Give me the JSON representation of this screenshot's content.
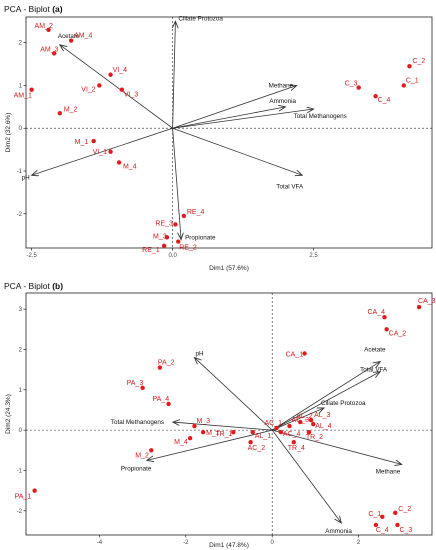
{
  "colors": {
    "points": "#e31a1c",
    "arrows": "#333333",
    "frame": "#000000",
    "reference": "#222222"
  },
  "chart_data": [
    {
      "type": "scatter",
      "subtype": "pca-biplot",
      "title": "PCA - Biplot",
      "panel": "(a)",
      "xlabel": "Dim1 (57.6%)",
      "ylabel": "Dim2 (32.6%)",
      "xlim": [
        -2.6,
        4.6
      ],
      "ylim": [
        -2.8,
        2.6
      ],
      "xticks": [
        -2.5,
        0.0,
        2.5
      ],
      "xtick_labels": [
        "-2.5",
        "0.0",
        "2.5"
      ],
      "yticks": [
        -2,
        -1,
        0,
        1,
        2
      ],
      "ytick_labels": [
        "-2",
        "-1",
        "0",
        "1",
        "2"
      ],
      "reference_lines": "dashed at x=0 and y=0",
      "grid": false,
      "points": [
        {
          "label": "AM_2",
          "x": -2.2,
          "y": 2.3
        },
        {
          "label": "AM_4",
          "x": -1.8,
          "y": 2.05
        },
        {
          "label": "AM_3",
          "x": -2.1,
          "y": 1.75
        },
        {
          "label": "AM_1",
          "x": -2.5,
          "y": 0.9
        },
        {
          "label": "M_2",
          "x": -2.0,
          "y": 0.35
        },
        {
          "label": "VI_4",
          "x": -1.1,
          "y": 1.25
        },
        {
          "label": "VI_2",
          "x": -1.3,
          "y": 1.0
        },
        {
          "label": "VI_3",
          "x": -0.9,
          "y": 0.9
        },
        {
          "label": "M_1",
          "x": -1.4,
          "y": -0.3
        },
        {
          "label": "VI_1",
          "x": -1.1,
          "y": -0.55
        },
        {
          "label": "M_4",
          "x": -0.95,
          "y": -0.8
        },
        {
          "label": "RE_4",
          "x": 0.2,
          "y": -2.05
        },
        {
          "label": "RE_3",
          "x": 0.05,
          "y": -2.25
        },
        {
          "label": "M_3",
          "x": -0.1,
          "y": -2.55
        },
        {
          "label": "RE_1",
          "x": -0.15,
          "y": -2.75
        },
        {
          "label": "RE_2",
          "x": 0.1,
          "y": -2.65
        },
        {
          "label": "C_2",
          "x": 4.2,
          "y": 1.45
        },
        {
          "label": "C_1",
          "x": 4.1,
          "y": 1.0
        },
        {
          "label": "C_3",
          "x": 3.3,
          "y": 0.95
        },
        {
          "label": "C_4",
          "x": 3.6,
          "y": 0.75
        }
      ],
      "loadings": [
        {
          "name": "Ciliate Protozoa",
          "x": 0.05,
          "y": 2.5
        },
        {
          "name": "Acetate",
          "x": -2.0,
          "y": 1.95
        },
        {
          "name": "Methane",
          "x": 2.2,
          "y": 1.0
        },
        {
          "name": "Ammonia",
          "x": 2.0,
          "y": 0.5
        },
        {
          "name": "Total Methanogens",
          "x": 2.5,
          "y": 0.45
        },
        {
          "name": "pH",
          "x": -2.5,
          "y": -1.1
        },
        {
          "name": "Total VFA",
          "x": 2.3,
          "y": -1.1
        },
        {
          "name": "Propionate",
          "x": 0.15,
          "y": -2.6
        }
      ]
    },
    {
      "type": "scatter",
      "subtype": "pca-biplot",
      "title": "PCA - Biplot",
      "panel": "(b)",
      "xlabel": "Dim1 (47.8%)",
      "ylabel": "Dim2 (24.3%)",
      "xlim": [
        -5.7,
        3.7
      ],
      "ylim": [
        -2.6,
        3.4
      ],
      "xticks": [
        -4,
        -2,
        0,
        2
      ],
      "xtick_labels": [
        "-4",
        "-2",
        "0",
        "2"
      ],
      "yticks": [
        -2,
        -1,
        0,
        1,
        2,
        3
      ],
      "ytick_labels": [
        "-2",
        "-1",
        "0",
        "1",
        "2",
        "3"
      ],
      "reference_lines": "dashed at x=0 and y=0",
      "grid": false,
      "points": [
        {
          "label": "CA_3",
          "x": 3.4,
          "y": 3.05
        },
        {
          "label": "CA_4",
          "x": 2.6,
          "y": 2.8
        },
        {
          "label": "CA_2",
          "x": 2.65,
          "y": 2.5
        },
        {
          "label": "CA_1",
          "x": 0.75,
          "y": 1.9
        },
        {
          "label": "PA_2",
          "x": -2.6,
          "y": 1.55
        },
        {
          "label": "PA_3",
          "x": -3.0,
          "y": 1.05
        },
        {
          "label": "PA_4",
          "x": -2.4,
          "y": 0.65
        },
        {
          "label": "M_3",
          "x": -1.8,
          "y": 0.1
        },
        {
          "label": "M_1",
          "x": -1.6,
          "y": -0.05
        },
        {
          "label": "M_4",
          "x": -1.9,
          "y": -0.2
        },
        {
          "label": "M_2",
          "x": -2.8,
          "y": -0.5
        },
        {
          "label": "TR_1",
          "x": -0.9,
          "y": -0.05
        },
        {
          "label": "AL_1",
          "x": -0.45,
          "y": -0.05
        },
        {
          "label": "AC_2",
          "x": -0.5,
          "y": -0.3
        },
        {
          "label": "AC_1",
          "x": 0.1,
          "y": 0.05
        },
        {
          "label": "AC_3",
          "x": 0.4,
          "y": 0.1
        },
        {
          "label": "AC_4",
          "x": 0.2,
          "y": -0.05
        },
        {
          "label": "AL_3",
          "x": 0.9,
          "y": 0.25
        },
        {
          "label": "TR_2",
          "x": 0.85,
          "y": -0.05
        },
        {
          "label": "AL_4",
          "x": 0.95,
          "y": 0.15
        },
        {
          "label": "AL_2",
          "x": 0.65,
          "y": 0.2
        },
        {
          "label": "TR_4",
          "x": 0.5,
          "y": -0.3
        },
        {
          "label": "PA_1",
          "x": -5.5,
          "y": -1.5
        },
        {
          "label": "C_2",
          "x": 2.85,
          "y": -2.05
        },
        {
          "label": "C_1",
          "x": 2.55,
          "y": -2.15
        },
        {
          "label": "C_4",
          "x": 2.4,
          "y": -2.35
        },
        {
          "label": "C_3",
          "x": 2.9,
          "y": -2.35
        }
      ],
      "loadings": [
        {
          "name": "pH",
          "x": -1.8,
          "y": 1.8
        },
        {
          "name": "Acetate",
          "x": 2.5,
          "y": 1.7
        },
        {
          "name": "Total VFA",
          "x": 2.5,
          "y": 1.45
        },
        {
          "name": "Ciliate Protozoa",
          "x": 1.2,
          "y": 0.55
        },
        {
          "name": "Total Methanogens",
          "x": -2.3,
          "y": 0.2
        },
        {
          "name": "Propionate",
          "x": -2.9,
          "y": -0.75
        },
        {
          "name": "Methane",
          "x": 3.0,
          "y": -0.85
        },
        {
          "name": "Ammonia",
          "x": 1.6,
          "y": -2.3
        }
      ]
    }
  ]
}
